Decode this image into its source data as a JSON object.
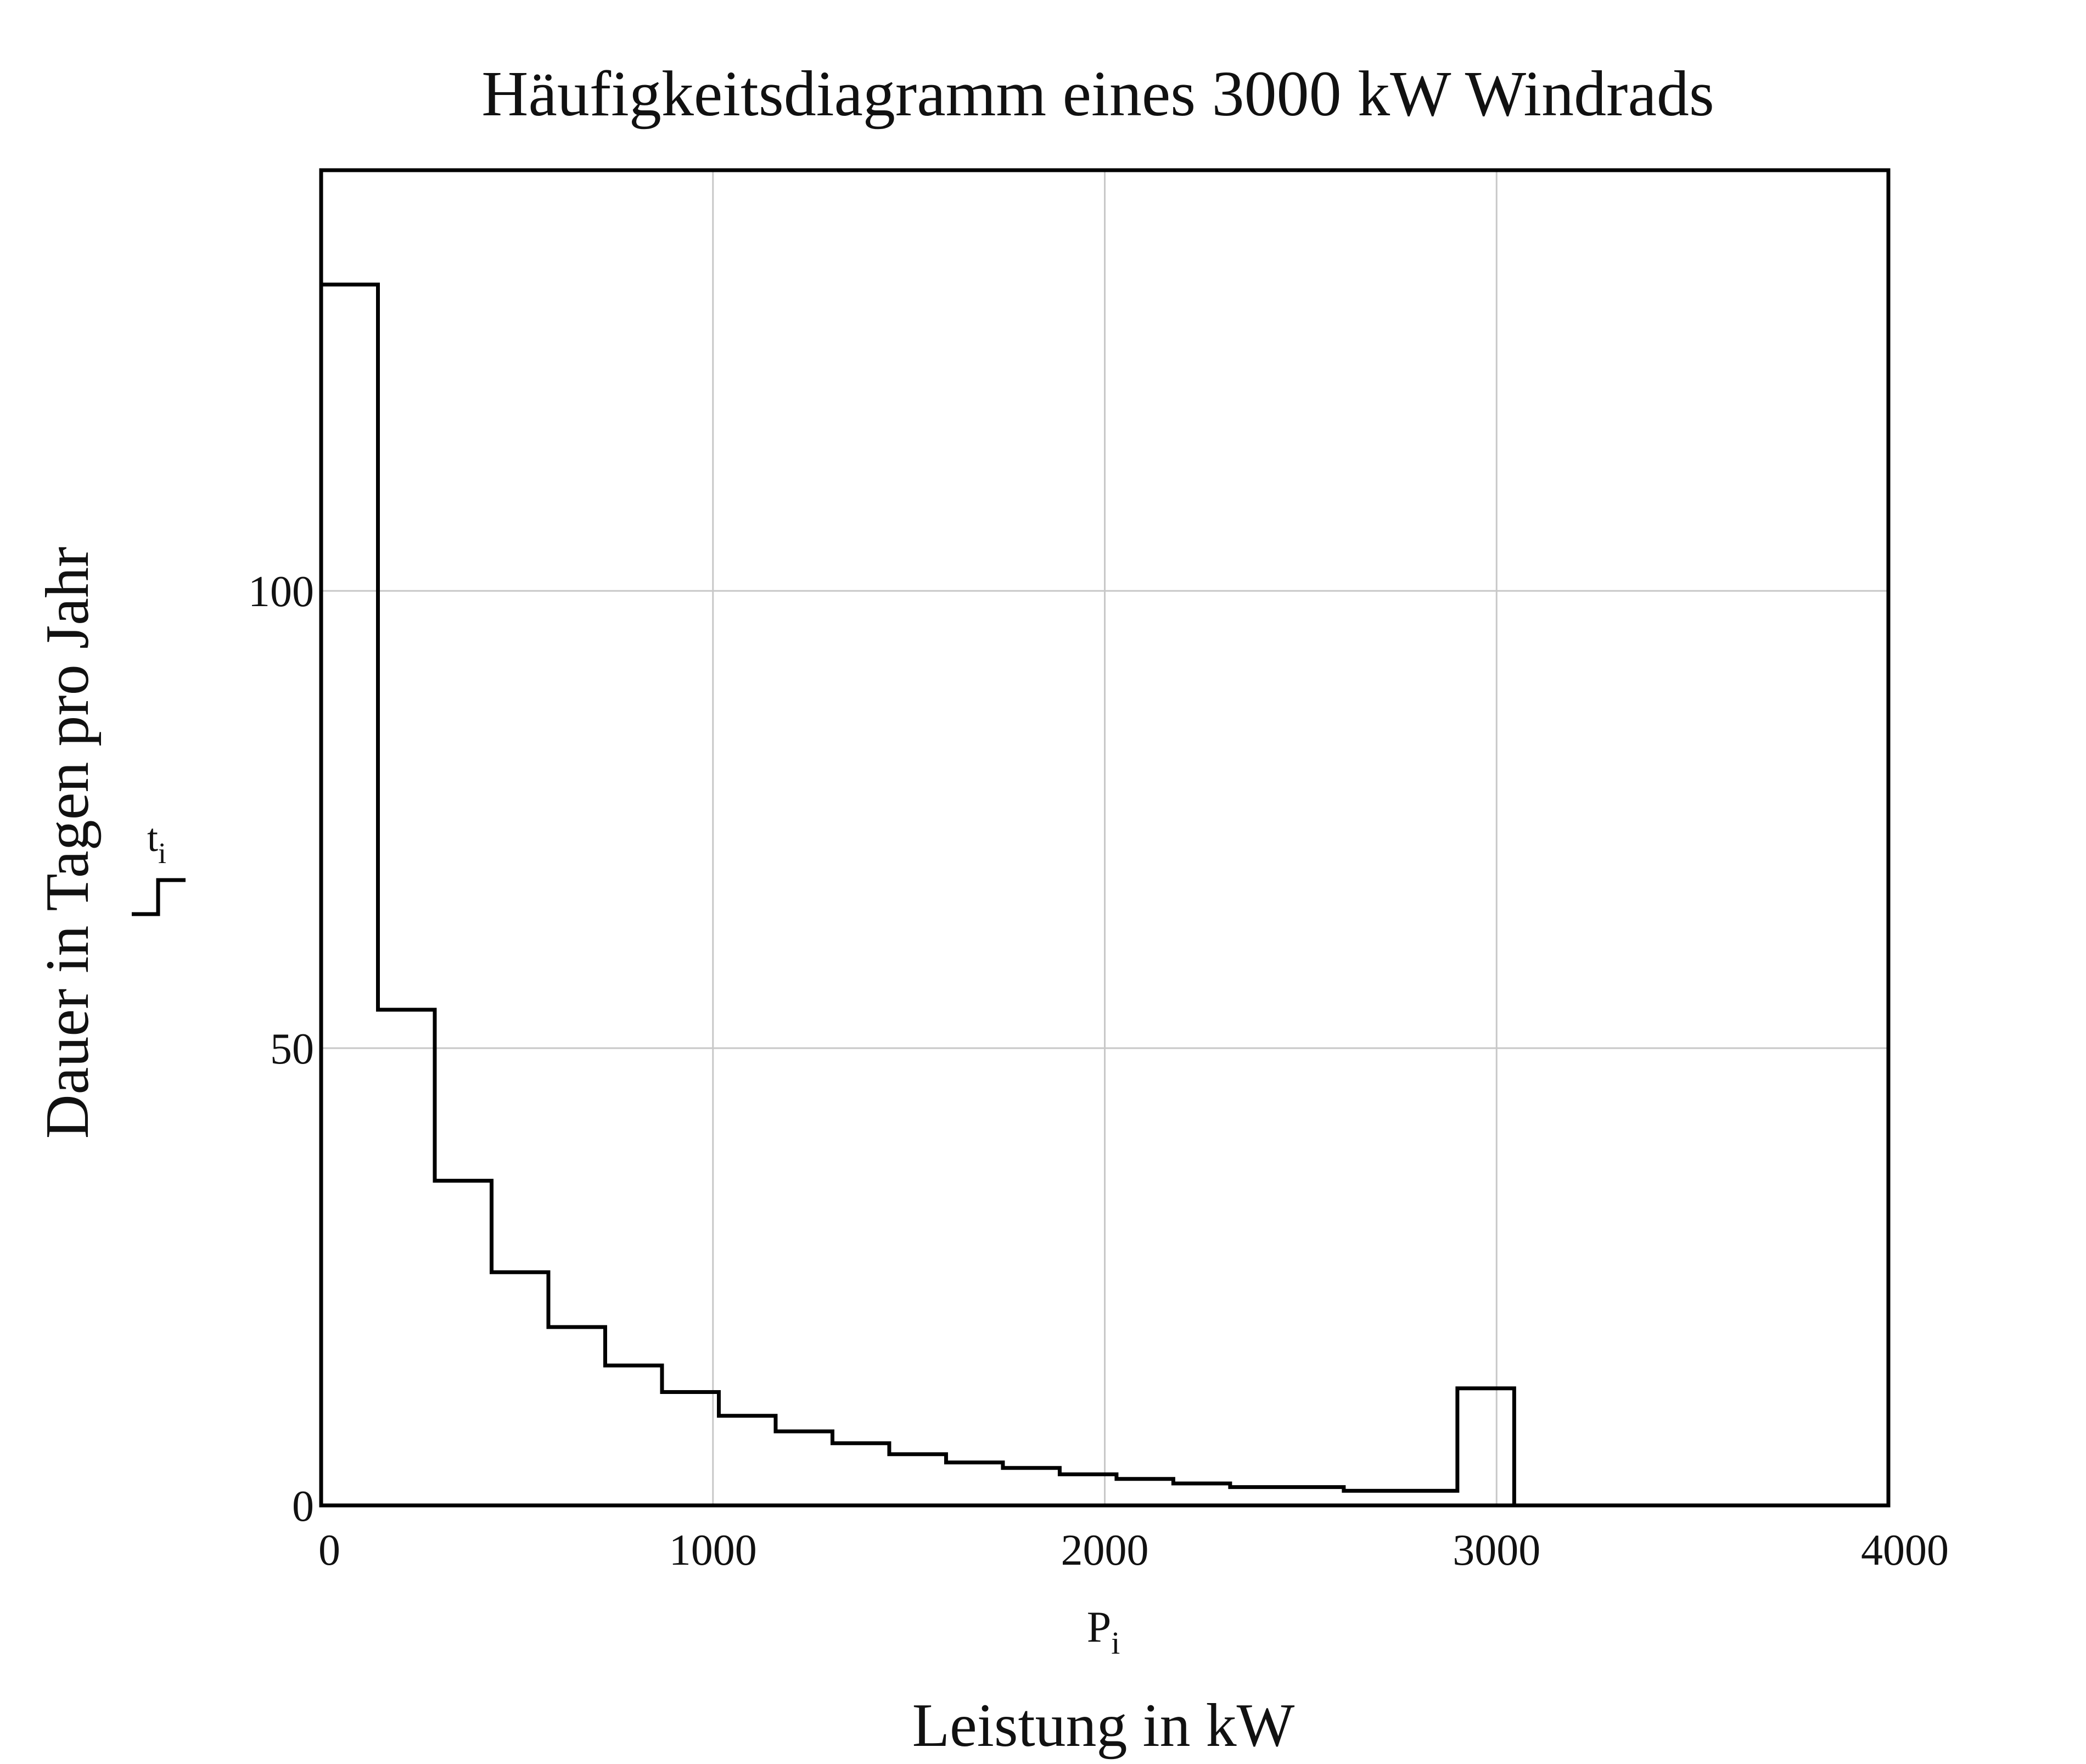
{
  "chart_data": {
    "type": "step",
    "title": "Häufigkeitsdiagramm eines 3000 kW Windrads",
    "xlabel": "Leistung in kW",
    "ylabel": "Dauer in Tagen pro Jahr",
    "x_variable": {
      "base": "P",
      "sub": "i"
    },
    "y_variable": {
      "base": "t",
      "sub": "i"
    },
    "xlim": [
      0,
      4000
    ],
    "ylim": [
      0,
      146
    ],
    "x_ticks": [
      0,
      1000,
      2000,
      3000,
      4000
    ],
    "y_ticks": [
      0,
      50,
      100
    ],
    "grid": true,
    "series": [
      {
        "x": [
          0,
          145,
          290,
          435,
          580,
          725,
          870,
          1015,
          1160,
          1305,
          1450,
          1595,
          1740,
          1885,
          2030,
          2175,
          2320,
          2465,
          2610,
          2755,
          2900,
          3045
        ],
        "y": [
          133.5,
          54.2,
          35.5,
          25.5,
          19.5,
          15.3,
          12.4,
          9.8,
          8.1,
          6.8,
          5.6,
          4.7,
          4.1,
          3.4,
          2.9,
          2.4,
          2.0,
          2.0,
          1.6,
          1.6,
          12.8,
          0
        ]
      }
    ]
  }
}
